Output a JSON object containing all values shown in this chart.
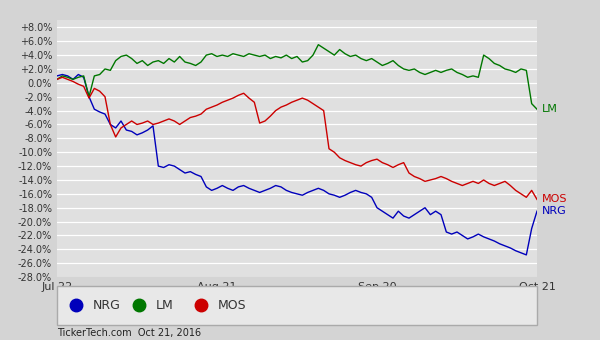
{
  "background_color": "#d4d4d4",
  "plot_bg_color": "#e0e0e0",
  "ylim": [
    -0.28,
    0.09
  ],
  "yticks": [
    -0.28,
    -0.26,
    -0.24,
    -0.22,
    -0.2,
    -0.18,
    -0.16,
    -0.14,
    -0.12,
    -0.1,
    -0.08,
    -0.06,
    -0.04,
    -0.02,
    0.0,
    0.02,
    0.04,
    0.06,
    0.08
  ],
  "ytick_labels": [
    "-28.0%",
    "-26.0%",
    "-24.0%",
    "-22.0%",
    "-20.0%",
    "-18.0%",
    "-16.0%",
    "-14.0%",
    "-12.0%",
    "-10.0%",
    "-8.0%",
    "-6.0%",
    "-4.0%",
    "-2.0%",
    "0.0%",
    "+2.0%",
    "+4.0%",
    "+6.0%",
    "+8.0%"
  ],
  "xtick_labels": [
    "Jul 22",
    "Aug 21",
    "Sep 20",
    "Oct 21"
  ],
  "xtick_positions": [
    0.0,
    0.333,
    0.667,
    1.0
  ],
  "nrg_color": "#0000bb",
  "lm_color": "#007700",
  "mos_color": "#cc0000",
  "legend_label_nrg": "NRG",
  "legend_label_lm": "LM",
  "legend_label_mos": "MOS",
  "watermark": "TickerTech.com  Oct 21, 2016",
  "nrg": [
    0.01,
    0.012,
    0.01,
    0.005,
    0.012,
    0.008,
    -0.02,
    -0.038,
    -0.042,
    -0.045,
    -0.06,
    -0.065,
    -0.055,
    -0.068,
    -0.07,
    -0.075,
    -0.072,
    -0.068,
    -0.062,
    -0.12,
    -0.122,
    -0.118,
    -0.12,
    -0.125,
    -0.13,
    -0.128,
    -0.132,
    -0.135,
    -0.15,
    -0.155,
    -0.152,
    -0.148,
    -0.152,
    -0.155,
    -0.15,
    -0.148,
    -0.152,
    -0.155,
    -0.158,
    -0.155,
    -0.152,
    -0.148,
    -0.15,
    -0.155,
    -0.158,
    -0.16,
    -0.162,
    -0.158,
    -0.155,
    -0.152,
    -0.155,
    -0.16,
    -0.162,
    -0.165,
    -0.162,
    -0.158,
    -0.155,
    -0.158,
    -0.16,
    -0.165,
    -0.18,
    -0.185,
    -0.19,
    -0.195,
    -0.185,
    -0.192,
    -0.195,
    -0.19,
    -0.185,
    -0.18,
    -0.19,
    -0.185,
    -0.19,
    -0.215,
    -0.218,
    -0.215,
    -0.22,
    -0.225,
    -0.222,
    -0.218,
    -0.222,
    -0.225,
    -0.228,
    -0.232,
    -0.235,
    -0.238,
    -0.242,
    -0.245,
    -0.248,
    -0.21,
    -0.185
  ],
  "lm": [
    0.005,
    0.01,
    0.008,
    0.005,
    0.008,
    0.01,
    -0.02,
    0.01,
    0.012,
    0.02,
    0.018,
    0.032,
    0.038,
    0.04,
    0.035,
    0.028,
    0.032,
    0.025,
    0.03,
    0.032,
    0.028,
    0.035,
    0.03,
    0.038,
    0.03,
    0.028,
    0.025,
    0.03,
    0.04,
    0.042,
    0.038,
    0.04,
    0.038,
    0.042,
    0.04,
    0.038,
    0.042,
    0.04,
    0.038,
    0.04,
    0.035,
    0.038,
    0.036,
    0.04,
    0.035,
    0.038,
    0.03,
    0.032,
    0.04,
    0.055,
    0.05,
    0.045,
    0.04,
    0.048,
    0.042,
    0.038,
    0.04,
    0.035,
    0.032,
    0.035,
    0.03,
    0.025,
    0.028,
    0.032,
    0.025,
    0.02,
    0.018,
    0.02,
    0.015,
    0.012,
    0.015,
    0.018,
    0.015,
    0.018,
    0.02,
    0.015,
    0.012,
    0.008,
    0.01,
    0.008,
    0.04,
    0.035,
    0.028,
    0.025,
    0.02,
    0.018,
    0.015,
    0.02,
    0.018,
    -0.03,
    -0.038
  ],
  "mos": [
    0.005,
    0.008,
    0.005,
    0.002,
    -0.002,
    -0.005,
    -0.022,
    -0.008,
    -0.012,
    -0.02,
    -0.06,
    -0.078,
    -0.065,
    -0.06,
    -0.055,
    -0.06,
    -0.058,
    -0.055,
    -0.06,
    -0.058,
    -0.055,
    -0.052,
    -0.055,
    -0.06,
    -0.055,
    -0.05,
    -0.048,
    -0.045,
    -0.038,
    -0.035,
    -0.032,
    -0.028,
    -0.025,
    -0.022,
    -0.018,
    -0.015,
    -0.022,
    -0.028,
    -0.058,
    -0.055,
    -0.048,
    -0.04,
    -0.035,
    -0.032,
    -0.028,
    -0.025,
    -0.022,
    -0.025,
    -0.03,
    -0.035,
    -0.04,
    -0.095,
    -0.1,
    -0.108,
    -0.112,
    -0.115,
    -0.118,
    -0.12,
    -0.115,
    -0.112,
    -0.11,
    -0.115,
    -0.118,
    -0.122,
    -0.118,
    -0.115,
    -0.13,
    -0.135,
    -0.138,
    -0.142,
    -0.14,
    -0.138,
    -0.135,
    -0.138,
    -0.142,
    -0.145,
    -0.148,
    -0.145,
    -0.142,
    -0.145,
    -0.14,
    -0.145,
    -0.148,
    -0.145,
    -0.142,
    -0.148,
    -0.155,
    -0.16,
    -0.165,
    -0.155,
    -0.168
  ]
}
